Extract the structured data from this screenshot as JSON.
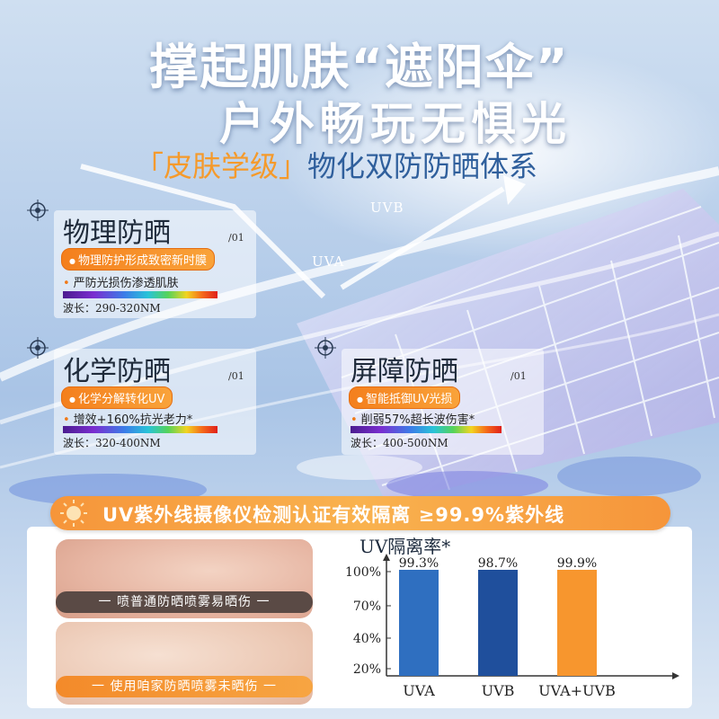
{
  "headline": {
    "line1": "撑起肌肤“遮阳伞”",
    "line2": "户外畅玩无惧光",
    "line3_highlight": "「皮肤学级」",
    "line3_rest": "物化双防防晒体系"
  },
  "arrows": {
    "uvb": "UVB",
    "uva": "UVA"
  },
  "cards": [
    {
      "title": "物理防晒",
      "num": "/01",
      "pill": "物理防护形成致密新时膜",
      "bullet": "严防光损伤渗透肌肤",
      "wavelength": "波长：290-320NM"
    },
    {
      "title": "化学防晒",
      "num": "/01",
      "pill": "化学分解转化UV",
      "bullet": "增效+160%抗光老力*",
      "wavelength": "波长：320-400NM"
    },
    {
      "title": "屏障防晒",
      "num": "/01",
      "pill": "智能抵御UV光损",
      "bullet": "削弱57%超长波伤害*",
      "wavelength": "波长：400-500NM"
    }
  ],
  "banner": "UV紫外线摄像仪检测认证有效隔离 ≥99.9%紫外线",
  "comparison": {
    "label_top": "一 喷普通防晒喷雾易晒伤 一",
    "label_bottom": "一 使用咱家防晒喷雾未晒伤 一"
  },
  "chart_title": "UV隔离率*",
  "chart_data": {
    "type": "bar",
    "categories": [
      "UVA",
      "UVB",
      "UVA+UVB"
    ],
    "values": [
      99.3,
      98.7,
      99.9
    ],
    "value_labels": [
      "99.3%",
      "98.7%",
      "99.9%"
    ],
    "y_ticks": [
      "100%",
      "70%",
      "40%",
      "20%"
    ],
    "bar_colors": [
      "#2f6fc0",
      "#1f4f9c",
      "#f7962e"
    ],
    "title": "UV隔离率*"
  },
  "colors": {
    "accent_orange": "#f59a2b",
    "deep_blue": "#2f5f9c"
  },
  "icons": [
    "target-icon"
  ]
}
